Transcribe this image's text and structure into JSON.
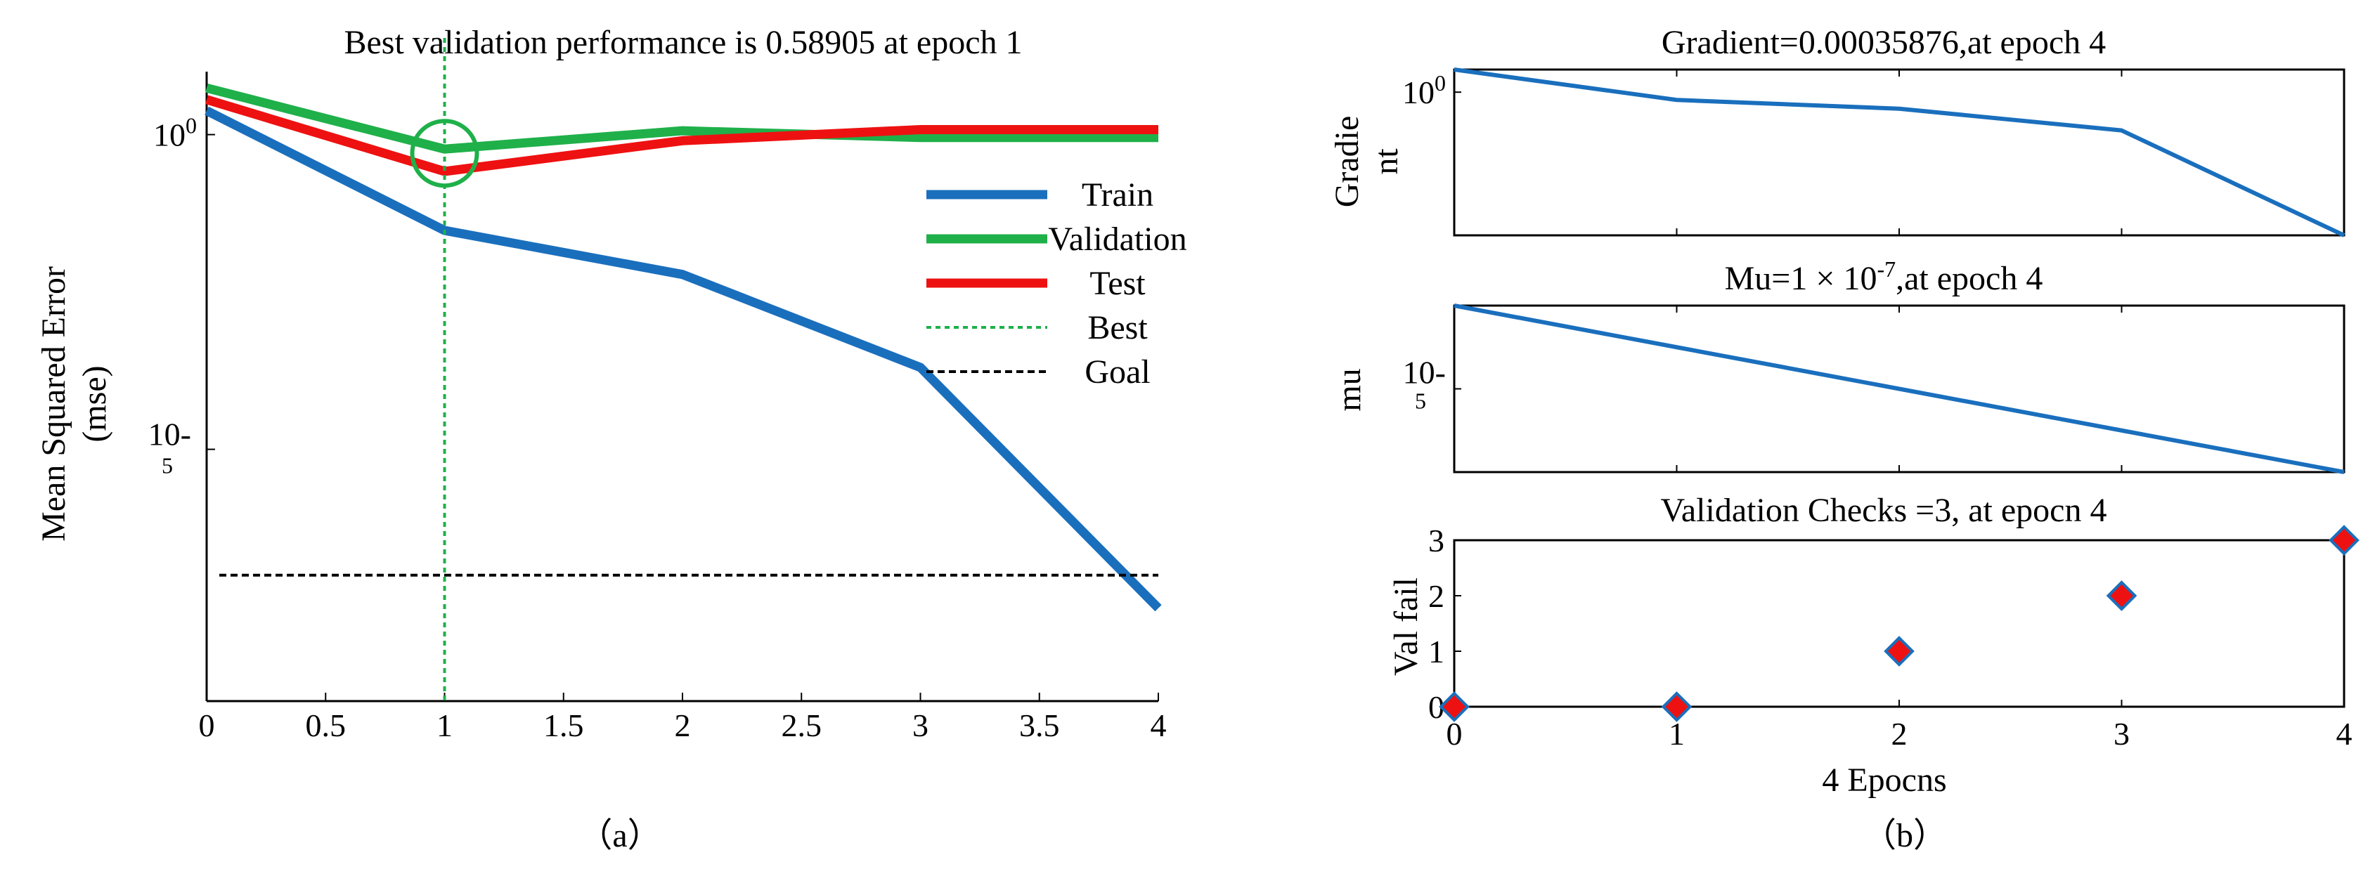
{
  "colors": {
    "train": "#1a6fbd",
    "validation": "#1fb04a",
    "test": "#ee1111",
    "best": "#1fb04a",
    "goal": "#000000",
    "marker_fill": "#ee1111",
    "marker_stroke": "#1a6fbd"
  },
  "chart_data": [
    {
      "type": "line",
      "panel_label": "（a）",
      "title": "Best validation performance is 0.58905 at epoch 1",
      "xlabel": "",
      "ylabel": "Mean Squared Error\n(mse)",
      "yscale": "log",
      "xlim": [
        0,
        4
      ],
      "ylim": [
        1e-09,
        10
      ],
      "xticks": [
        0,
        0.5,
        1,
        1.5,
        2,
        2.5,
        3,
        3.5,
        4
      ],
      "xtick_labels": [
        "0",
        "0.5",
        "1",
        "1.5",
        "2",
        "2.5",
        "3",
        "3.5",
        "4"
      ],
      "yticks": [
        {
          "value": 1,
          "base": "10",
          "exp": "0"
        },
        {
          "value": 1e-05,
          "base": "10",
          "exp": "-5"
        }
      ],
      "x": [
        0,
        1,
        2,
        3,
        4
      ],
      "series": [
        {
          "name": "Train",
          "style": "solid",
          "color_key": "train",
          "values": [
            2.4,
            0.03,
            0.006,
            0.0002,
            3e-08
          ]
        },
        {
          "name": "Validation",
          "style": "solid",
          "color_key": "validation",
          "values": [
            5.5,
            0.58905,
            1.15,
            0.9,
            0.9
          ]
        },
        {
          "name": "Test",
          "style": "solid",
          "color_key": "test",
          "values": [
            3.6,
            0.26,
            0.8,
            1.2,
            1.2
          ]
        },
        {
          "name": "Best",
          "style": "dotted",
          "color_key": "best",
          "vertical_x": 1
        },
        {
          "name": "Goal",
          "style": "dashed",
          "color_key": "goal",
          "horizontal_y": 1e-07
        }
      ],
      "best_marker": {
        "x": 1,
        "y": 0.58905
      },
      "legend": [
        "Train",
        "Validation",
        "Test",
        "Best",
        "Goal"
      ],
      "legend_position": "upper-right"
    },
    {
      "type": "line",
      "panel_label": "（b）",
      "title": "Gradient=0.00035876,at epoch 4",
      "ylabel_lines": [
        "Gradie",
        "nt"
      ],
      "yscale": "log",
      "xlim": [
        0,
        4
      ],
      "ylim": [
        0.00035876,
        3.5
      ],
      "yticks": [
        {
          "value": 1,
          "base": "10",
          "exp": "0"
        }
      ],
      "x": [
        0,
        1,
        2,
        3,
        4
      ],
      "values": [
        3.5,
        0.65,
        0.4,
        0.12,
        0.00035876
      ]
    },
    {
      "type": "line",
      "title_base": "Mu=1 × 10",
      "title_exp": "-7",
      "title_suffix": ",at epoch 4",
      "ylabel": "mu",
      "yscale": "log",
      "xlim": [
        0,
        4
      ],
      "ylim": [
        1e-07,
        0.001
      ],
      "yticks": [
        {
          "value": 1e-05,
          "base": "10",
          "exp": "-5"
        }
      ],
      "x": [
        0,
        1,
        2,
        3,
        4
      ],
      "values": [
        0.001,
        0.0001,
        1e-05,
        1e-06,
        1e-07
      ]
    },
    {
      "type": "scatter",
      "title": "Validation Checks =3, at epocn 4",
      "xlabel": "4 Epocns",
      "ylabel": "Val fail",
      "xlim": [
        0,
        4
      ],
      "ylim": [
        0,
        3
      ],
      "xticks": [
        0,
        1,
        2,
        3,
        4
      ],
      "xtick_labels": [
        "0",
        "1",
        "2",
        "3",
        "4"
      ],
      "yticks": [
        0,
        1,
        2,
        3
      ],
      "ytick_labels": [
        "0",
        "1",
        "2",
        "3"
      ],
      "x": [
        0,
        1,
        2,
        3,
        4
      ],
      "values": [
        0,
        0,
        1,
        2,
        3
      ]
    }
  ]
}
